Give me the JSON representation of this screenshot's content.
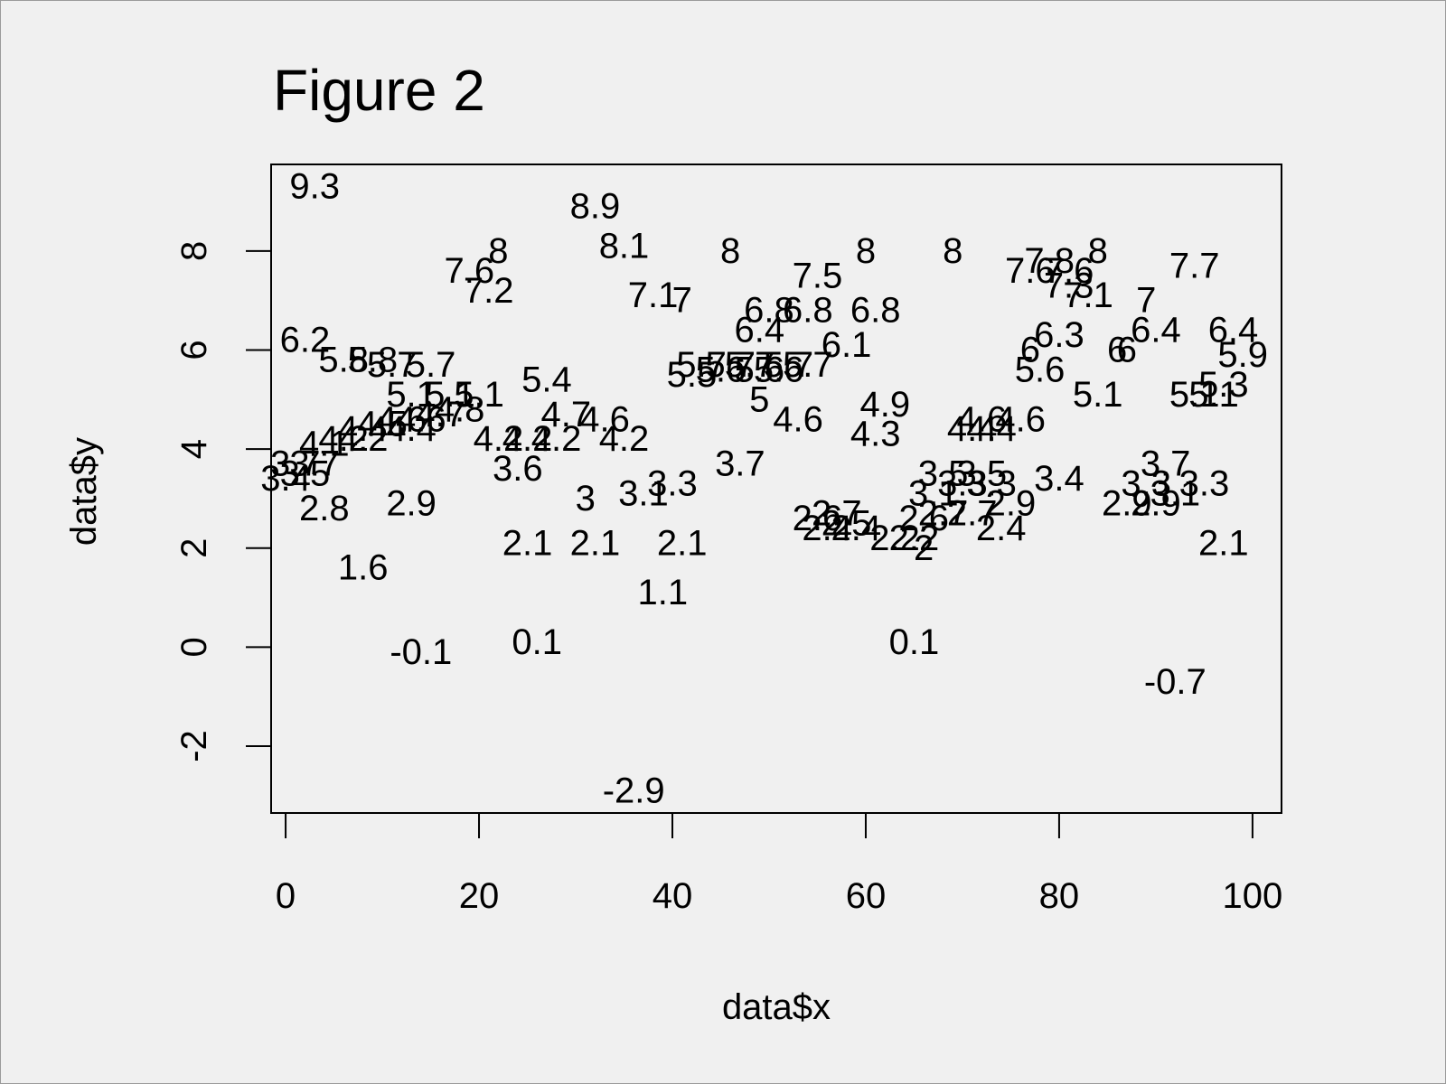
{
  "chart_data": {
    "type": "scatter",
    "title": "Figure 2",
    "xlabel": "data$x",
    "ylabel": "data$y",
    "xlim": [
      -1.5,
      103
    ],
    "ylim": [
      -3.35,
      9.75
    ],
    "x_ticks": [
      0,
      20,
      40,
      60,
      80,
      100
    ],
    "x_tick_labels": [
      "0",
      "20",
      "40",
      "60",
      "80",
      "100"
    ],
    "y_ticks": [
      -2,
      0,
      2,
      4,
      6,
      8
    ],
    "y_tick_labels": [
      "-2",
      "0",
      "2",
      "4",
      "6",
      "8"
    ],
    "grid": false,
    "legend": "none",
    "marker": "point value printed as text label",
    "points": [
      {
        "x": 0,
        "y": 3.4,
        "label": "3.4"
      },
      {
        "x": 1,
        "y": 3.7,
        "label": "3.7"
      },
      {
        "x": 2,
        "y": 6.2,
        "label": "6.2"
      },
      {
        "x": 2,
        "y": 3.5,
        "label": "3.5"
      },
      {
        "x": 3,
        "y": 3.7,
        "label": "3.7"
      },
      {
        "x": 3,
        "y": 9.3,
        "label": "9.3"
      },
      {
        "x": 4,
        "y": 2.8,
        "label": "2.8"
      },
      {
        "x": 4,
        "y": 4.1,
        "label": "4.1"
      },
      {
        "x": 6,
        "y": 5.8,
        "label": "5.8"
      },
      {
        "x": 6,
        "y": 4.2,
        "label": "4.2"
      },
      {
        "x": 8,
        "y": 1.6,
        "label": "1.6"
      },
      {
        "x": 8,
        "y": 4.2,
        "label": "4.2"
      },
      {
        "x": 8,
        "y": 4.4,
        "label": "4.4"
      },
      {
        "x": 9,
        "y": 5.8,
        "label": "5.8"
      },
      {
        "x": 10,
        "y": 4.5,
        "label": "4.5"
      },
      {
        "x": 11,
        "y": 5.7,
        "label": "5.7"
      },
      {
        "x": 12,
        "y": 4.6,
        "label": "4.6"
      },
      {
        "x": 13,
        "y": 2.9,
        "label": "2.9"
      },
      {
        "x": 13,
        "y": 4.4,
        "label": "4.4"
      },
      {
        "x": 13,
        "y": 5.1,
        "label": "5.1"
      },
      {
        "x": 14,
        "y": -0.1,
        "label": "-0.1"
      },
      {
        "x": 14,
        "y": 4.6,
        "label": "4.6"
      },
      {
        "x": 15,
        "y": 5.7,
        "label": "5.7"
      },
      {
        "x": 16,
        "y": 4.7,
        "label": "4.7"
      },
      {
        "x": 17,
        "y": 5.1,
        "label": "5.1"
      },
      {
        "x": 18,
        "y": 4.8,
        "label": "4.8"
      },
      {
        "x": 19,
        "y": 7.6,
        "label": "7.6"
      },
      {
        "x": 20,
        "y": 5.1,
        "label": "5.1"
      },
      {
        "x": 21,
        "y": 7.2,
        "label": "7.2"
      },
      {
        "x": 22,
        "y": 4.2,
        "label": "4.2"
      },
      {
        "x": 22,
        "y": 8,
        "label": "8"
      },
      {
        "x": 24,
        "y": 3.6,
        "label": "3.6"
      },
      {
        "x": 25,
        "y": 2.1,
        "label": "2.1"
      },
      {
        "x": 25,
        "y": 4.2,
        "label": "4.2"
      },
      {
        "x": 26,
        "y": 0.1,
        "label": "0.1"
      },
      {
        "x": 27,
        "y": 5.4,
        "label": "5.4"
      },
      {
        "x": 28,
        "y": 4.2,
        "label": "4.2"
      },
      {
        "x": 29,
        "y": 4.7,
        "label": "4.7"
      },
      {
        "x": 31,
        "y": 3,
        "label": "3"
      },
      {
        "x": 32,
        "y": 8.9,
        "label": "8.9"
      },
      {
        "x": 32,
        "y": 2.1,
        "label": "2.1"
      },
      {
        "x": 33,
        "y": 4.6,
        "label": "4.6"
      },
      {
        "x": 35,
        "y": 8.1,
        "label": "8.1"
      },
      {
        "x": 35,
        "y": 4.2,
        "label": "4.2"
      },
      {
        "x": 36,
        "y": -2.9,
        "label": "-2.9"
      },
      {
        "x": 37,
        "y": 3.1,
        "label": "3.1"
      },
      {
        "x": 38,
        "y": 7.1,
        "label": "7.1"
      },
      {
        "x": 39,
        "y": 1.1,
        "label": "1.1"
      },
      {
        "x": 40,
        "y": 3.3,
        "label": "3.3"
      },
      {
        "x": 41,
        "y": 2.1,
        "label": "2.1"
      },
      {
        "x": 41,
        "y": 7,
        "label": "7"
      },
      {
        "x": 42,
        "y": 5.5,
        "label": "5.5"
      },
      {
        "x": 43,
        "y": 5.7,
        "label": "5.7"
      },
      {
        "x": 45,
        "y": 5.6,
        "label": "5.6"
      },
      {
        "x": 46,
        "y": 5.7,
        "label": "5.7"
      },
      {
        "x": 46,
        "y": 8,
        "label": "8"
      },
      {
        "x": 47,
        "y": 3.7,
        "label": "3.7"
      },
      {
        "x": 48,
        "y": 5.7,
        "label": "5.7"
      },
      {
        "x": 49,
        "y": 6.4,
        "label": "6.4"
      },
      {
        "x": 49,
        "y": 5.6,
        "label": "5.6"
      },
      {
        "x": 49,
        "y": 5,
        "label": "5"
      },
      {
        "x": 50,
        "y": 6.8,
        "label": "6.8"
      },
      {
        "x": 51,
        "y": 5.6,
        "label": "5.6"
      },
      {
        "x": 52,
        "y": 5.7,
        "label": "5.7"
      },
      {
        "x": 53,
        "y": 4.6,
        "label": "4.6"
      },
      {
        "x": 54,
        "y": 5.7,
        "label": "5.7"
      },
      {
        "x": 54,
        "y": 6.8,
        "label": "6.8"
      },
      {
        "x": 55,
        "y": 2.6,
        "label": "2.6"
      },
      {
        "x": 55,
        "y": 7.5,
        "label": "7.5"
      },
      {
        "x": 56,
        "y": 2.4,
        "label": "2.4"
      },
      {
        "x": 57,
        "y": 2.7,
        "label": "2.7"
      },
      {
        "x": 58,
        "y": 2.5,
        "label": "2.5"
      },
      {
        "x": 58,
        "y": 6.1,
        "label": "6.1"
      },
      {
        "x": 59,
        "y": 2.4,
        "label": "2.4"
      },
      {
        "x": 60,
        "y": 8,
        "label": "8"
      },
      {
        "x": 61,
        "y": 6.8,
        "label": "6.8"
      },
      {
        "x": 61,
        "y": 4.3,
        "label": "4.3"
      },
      {
        "x": 62,
        "y": 4.9,
        "label": "4.9"
      },
      {
        "x": 63,
        "y": 2.2,
        "label": "2.2"
      },
      {
        "x": 65,
        "y": 0.1,
        "label": "0.1"
      },
      {
        "x": 65,
        "y": 2.2,
        "label": "2.2"
      },
      {
        "x": 66,
        "y": 2,
        "label": "2"
      },
      {
        "x": 66,
        "y": 2.6,
        "label": "2.6"
      },
      {
        "x": 67,
        "y": 3.1,
        "label": "3.1"
      },
      {
        "x": 68,
        "y": 3.5,
        "label": "3.5"
      },
      {
        "x": 68,
        "y": 2.7,
        "label": "2.7"
      },
      {
        "x": 69,
        "y": 8,
        "label": "8"
      },
      {
        "x": 70,
        "y": 3.3,
        "label": "3.3"
      },
      {
        "x": 71,
        "y": 4.4,
        "label": "4.4"
      },
      {
        "x": 71,
        "y": 2.7,
        "label": "2.7"
      },
      {
        "x": 72,
        "y": 3.5,
        "label": "3.5"
      },
      {
        "x": 72,
        "y": 4.6,
        "label": "4.6"
      },
      {
        "x": 73,
        "y": 3.3,
        "label": "3.3"
      },
      {
        "x": 73,
        "y": 4.4,
        "label": "4.4"
      },
      {
        "x": 74,
        "y": 2.4,
        "label": "2.4"
      },
      {
        "x": 75,
        "y": 2.9,
        "label": "2.9"
      },
      {
        "x": 76,
        "y": 4.6,
        "label": "4.6"
      },
      {
        "x": 77,
        "y": 7.6,
        "label": "7.6"
      },
      {
        "x": 77,
        "y": 6,
        "label": "6"
      },
      {
        "x": 78,
        "y": 5.6,
        "label": "5.6"
      },
      {
        "x": 79,
        "y": 7.8,
        "label": "7.8"
      },
      {
        "x": 80,
        "y": 6.3,
        "label": "6.3"
      },
      {
        "x": 80,
        "y": 3.4,
        "label": "3.4"
      },
      {
        "x": 81,
        "y": 7.6,
        "label": "7.6"
      },
      {
        "x": 81,
        "y": 7.3,
        "label": "7.3"
      },
      {
        "x": 83,
        "y": 7.1,
        "label": "7.1"
      },
      {
        "x": 84,
        "y": 8,
        "label": "8"
      },
      {
        "x": 84,
        "y": 5.1,
        "label": "5.1"
      },
      {
        "x": 86,
        "y": 6,
        "label": "6"
      },
      {
        "x": 87,
        "y": 2.9,
        "label": "2.9"
      },
      {
        "x": 87,
        "y": 6,
        "label": "6"
      },
      {
        "x": 89,
        "y": 7,
        "label": "7"
      },
      {
        "x": 89,
        "y": 3.3,
        "label": "3.3"
      },
      {
        "x": 90,
        "y": 6.4,
        "label": "6.4"
      },
      {
        "x": 90,
        "y": 2.9,
        "label": "2.9"
      },
      {
        "x": 91,
        "y": 3.7,
        "label": "3.7"
      },
      {
        "x": 92,
        "y": -0.7,
        "label": "-0.7"
      },
      {
        "x": 92,
        "y": 3.1,
        "label": "3.1"
      },
      {
        "x": 94,
        "y": 7.7,
        "label": "7.7"
      },
      {
        "x": 94,
        "y": 5.1,
        "label": "5.1"
      },
      {
        "x": 95,
        "y": 3.3,
        "label": "3.3"
      },
      {
        "x": 96,
        "y": 5.1,
        "label": "5.1"
      },
      {
        "x": 97,
        "y": 2.1,
        "label": "2.1"
      },
      {
        "x": 97,
        "y": 5.3,
        "label": "5.3"
      },
      {
        "x": 98,
        "y": 6.4,
        "label": "6.4"
      },
      {
        "x": 99,
        "y": 5.9,
        "label": "5.9"
      }
    ]
  }
}
